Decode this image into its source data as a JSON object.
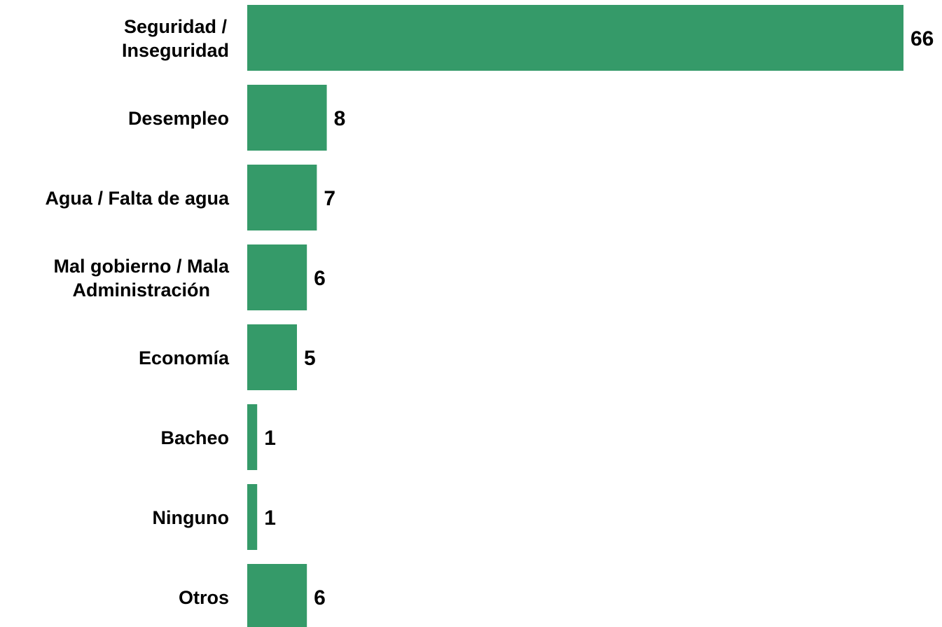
{
  "chart_data": {
    "type": "bar",
    "orientation": "horizontal",
    "categories": [
      [
        "Seguridad /",
        "Inseguridad"
      ],
      [
        "Desempleo"
      ],
      [
        "Agua / Falta de agua"
      ],
      [
        "Mal gobierno / Mala",
        "Administración"
      ],
      [
        "Economía"
      ],
      [
        "Bacheo"
      ],
      [
        "Ninguno"
      ],
      [
        "Otros"
      ]
    ],
    "values": [
      66,
      8,
      7,
      6,
      5,
      1,
      1,
      6
    ],
    "value_labels": [
      "66",
      "8",
      "7",
      "6",
      "5",
      "1",
      "1",
      "6"
    ],
    "bar_color": "#359a69",
    "title": "",
    "xlabel": "",
    "ylabel": "",
    "grid": false,
    "legend": "none"
  }
}
